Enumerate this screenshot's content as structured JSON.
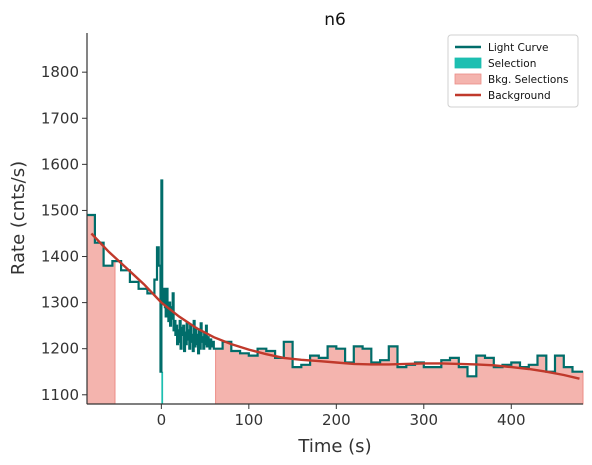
{
  "chart_data": {
    "type": "line",
    "title": "n6",
    "xlabel": "Time (s)",
    "ylabel": "Rate (cnts/s)",
    "xlim": [
      -85,
      482
    ],
    "ylim": [
      1080,
      1885
    ],
    "xticks": [
      0,
      100,
      200,
      300,
      400
    ],
    "yticks": [
      1100,
      1200,
      1300,
      1400,
      1500,
      1600,
      1700,
      1800
    ],
    "grid": false,
    "legend_position": "top-right",
    "colors": {
      "light_curve": "#006d6a",
      "selection": "#1dbfb1",
      "bkg_fill": "#f4b4ae",
      "bkg_edge": "#ec8c86",
      "background": "#c0392b",
      "axis": "#333333"
    },
    "legend": [
      {
        "label": "Light Curve",
        "kind": "line",
        "color": "#006d6a"
      },
      {
        "label": "Selection",
        "kind": "patch",
        "color": "#1dbfb1"
      },
      {
        "label": "Bkg. Selections",
        "kind": "patch",
        "color": "#f4b4ae"
      },
      {
        "label": "Background",
        "kind": "line",
        "color": "#c0392b"
      }
    ],
    "bkg_selections": [
      [
        -85,
        -53
      ],
      [
        62,
        482
      ]
    ],
    "selection_interval": [
      0,
      2
    ],
    "light_curve": {
      "x": [
        -85,
        -76,
        -66,
        -56,
        -46,
        -36,
        -26,
        -16,
        -8,
        -5,
        -3,
        -1,
        0,
        1,
        2,
        3,
        4,
        5,
        6,
        7,
        8,
        9,
        10,
        11,
        12,
        13,
        14,
        15,
        16,
        17,
        18,
        19,
        20,
        21,
        22,
        23,
        24,
        25,
        26,
        27,
        28,
        29,
        30,
        31,
        32,
        33,
        34,
        35,
        36,
        37,
        38,
        39,
        40,
        41,
        42,
        43,
        44,
        45,
        46,
        47,
        48,
        49,
        50,
        51,
        52,
        53,
        54,
        55,
        56,
        57,
        58,
        59,
        60,
        70,
        80,
        90,
        100,
        110,
        120,
        130,
        140,
        150,
        160,
        170,
        180,
        190,
        200,
        210,
        220,
        230,
        240,
        250,
        260,
        270,
        280,
        290,
        300,
        310,
        320,
        330,
        340,
        350,
        360,
        370,
        380,
        390,
        400,
        410,
        420,
        430,
        440,
        450,
        460,
        470
      ],
      "y": [
        1490,
        1430,
        1380,
        1390,
        1370,
        1345,
        1330,
        1320,
        1350,
        1420,
        1380,
        1150,
        1565,
        1310,
        1300,
        1330,
        1290,
        1270,
        1330,
        1280,
        1260,
        1300,
        1250,
        1290,
        1265,
        1320,
        1240,
        1260,
        1230,
        1250,
        1210,
        1240,
        1215,
        1260,
        1200,
        1245,
        1230,
        1250,
        1195,
        1235,
        1210,
        1255,
        1220,
        1240,
        1200,
        1250,
        1215,
        1230,
        1195,
        1260,
        1205,
        1245,
        1210,
        1230,
        1190,
        1240,
        1200,
        1255,
        1215,
        1225,
        1200,
        1235,
        1210,
        1250,
        1205,
        1225,
        1215,
        1200,
        1220,
        1210,
        1205,
        1215,
        1200,
        1215,
        1195,
        1190,
        1185,
        1200,
        1195,
        1180,
        1215,
        1160,
        1165,
        1185,
        1180,
        1205,
        1200,
        1170,
        1205,
        1200,
        1170,
        1175,
        1205,
        1160,
        1165,
        1170,
        1160,
        1160,
        1175,
        1180,
        1160,
        1140,
        1185,
        1180,
        1160,
        1165,
        1170,
        1160,
        1165,
        1185,
        1150,
        1185,
        1160,
        1150
      ]
    },
    "background_model": {
      "x": [
        -80,
        -60,
        -40,
        -20,
        0,
        20,
        40,
        60,
        80,
        100,
        120,
        140,
        160,
        180,
        200,
        220,
        240,
        260,
        280,
        300,
        320,
        340,
        360,
        380,
        400,
        420,
        440,
        460,
        478
      ],
      "y": [
        1450,
        1410,
        1375,
        1340,
        1300,
        1270,
        1245,
        1225,
        1210,
        1198,
        1188,
        1180,
        1176,
        1173,
        1170,
        1167,
        1166,
        1166,
        1167,
        1168,
        1168,
        1167,
        1166,
        1164,
        1160,
        1156,
        1150,
        1143,
        1135
      ]
    }
  }
}
